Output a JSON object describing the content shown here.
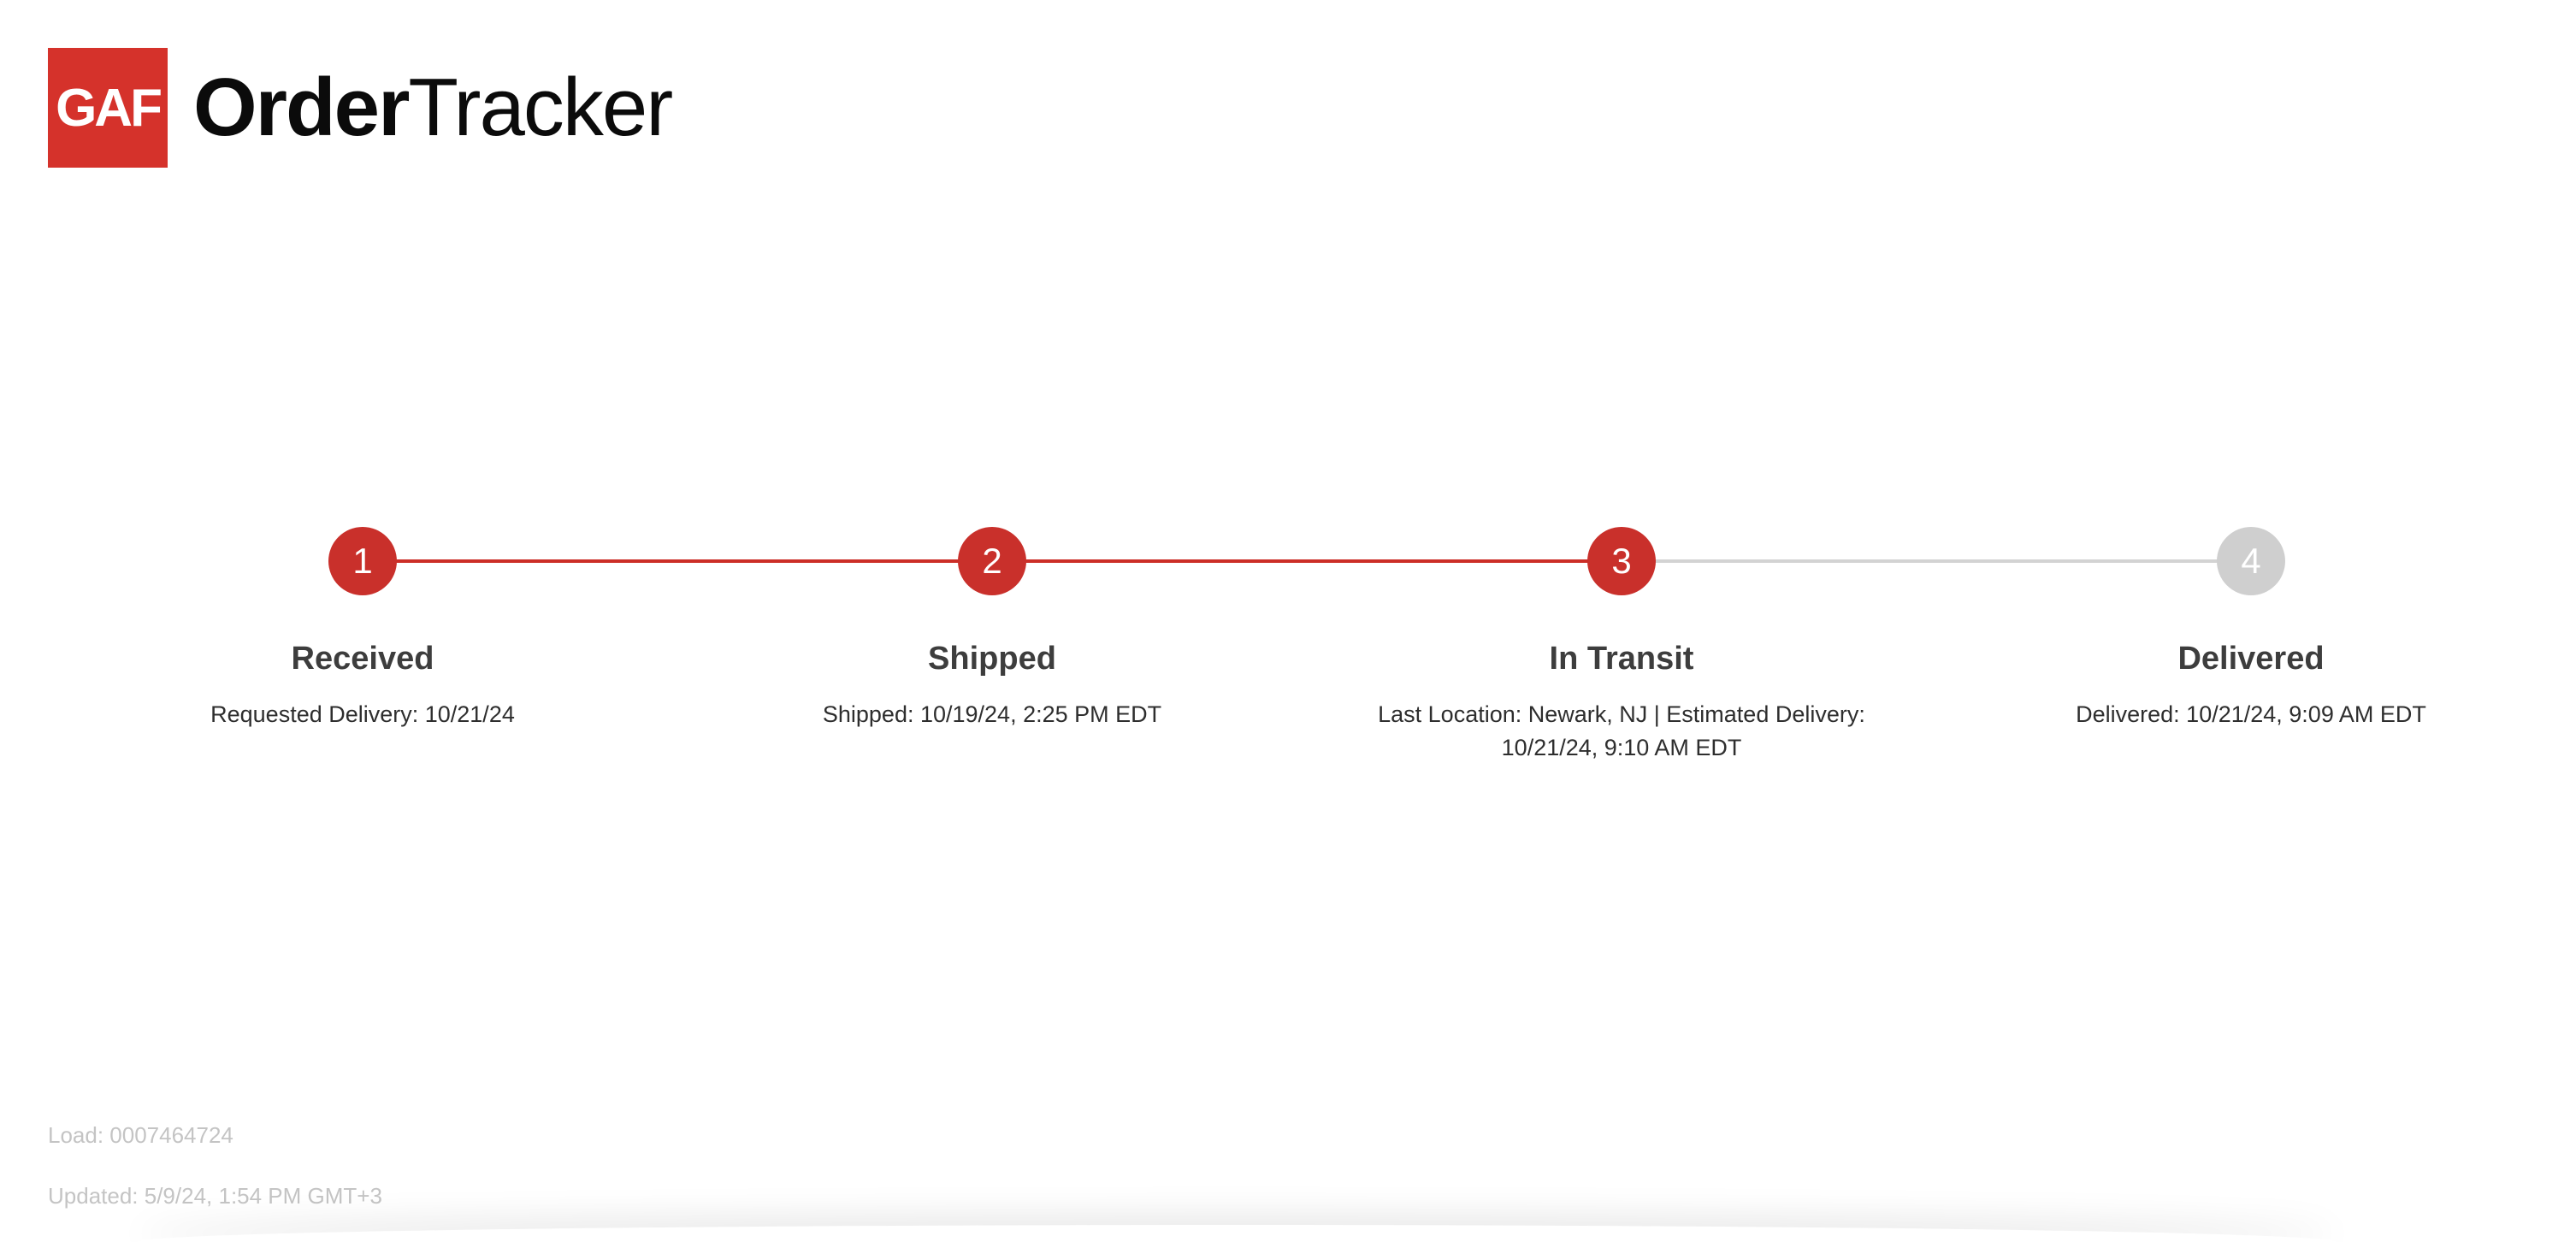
{
  "header": {
    "logo_text": "GAF",
    "title_bold": "Order",
    "title_light": "Tracker",
    "brand_color": "#d5322b"
  },
  "stepper": {
    "current_step": 3,
    "total_steps": 4,
    "steps": [
      {
        "number": "1",
        "title": "Received",
        "detail": "Requested Delivery: 10/21/24",
        "status": "complete"
      },
      {
        "number": "2",
        "title": "Shipped",
        "detail": "Shipped: 10/19/24, 2:25 PM EDT",
        "status": "complete"
      },
      {
        "number": "3",
        "title": "In Transit",
        "detail": "Last Location: Newark, NJ | Estimated Delivery: 10/21/24, 9:10 AM EDT",
        "status": "current"
      },
      {
        "number": "4",
        "title": "Delivered",
        "detail": "Delivered: 10/21/24, 9:09 AM EDT",
        "status": "pending"
      }
    ],
    "colors": {
      "complete": "#c9302b",
      "pending": "#cfcfcf"
    }
  },
  "footer": {
    "load": "Load: 0007464724",
    "updated": "Updated: 5/9/24, 1:54 PM GMT+3"
  }
}
